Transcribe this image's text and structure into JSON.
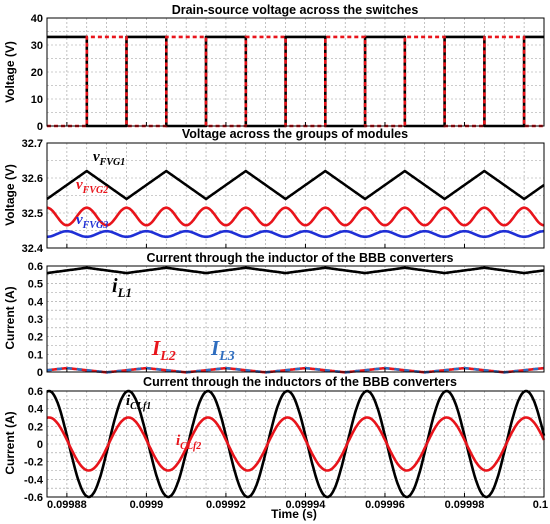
{
  "figure": {
    "xlabel": "Time (s)",
    "x_ticks": [
      "0.09988",
      "0.0999",
      "0.09992",
      "0.09994",
      "0.09996",
      "0.09998",
      "0.1"
    ]
  },
  "chart_data": [
    {
      "type": "line",
      "title": "Drain-source voltage across the switches",
      "ylabel": "Voltage (V)",
      "xlim": [
        0.099875,
        0.1
      ],
      "ylim": [
        0,
        40
      ],
      "y_ticks": [
        "0",
        "10",
        "20",
        "30",
        "40"
      ],
      "grid": true,
      "series": [
        {
          "color": "#000000",
          "style": "solid",
          "signal": "square",
          "low": 0,
          "high": 33,
          "period": 2e-05,
          "first_low_start": 0.099885,
          "duty": 0.5
        },
        {
          "color": "#e8141b",
          "style": "dashed",
          "signal": "square",
          "low": 0,
          "high": 33,
          "period": 2e-05,
          "first_low_start": 0.099875,
          "duty": 0.5
        }
      ],
      "annotations": []
    },
    {
      "type": "line",
      "title": "Voltage across the groups of modules",
      "ylabel": "Voltage (V)",
      "xlim": [
        0.099875,
        0.1
      ],
      "ylim": [
        32.4,
        32.7
      ],
      "y_ticks": [
        "32.4",
        "32.5",
        "32.6",
        "32.7"
      ],
      "grid": true,
      "series": [
        {
          "name": "v_FVG1",
          "color": "#000000",
          "signal": "triangle",
          "center": 32.58,
          "amp": 0.04,
          "period": 2e-05,
          "phase": 0.0
        },
        {
          "name": "v_FVG2",
          "color": "#e8141b",
          "signal": "wave",
          "center": 32.49,
          "amp": 0.025,
          "period": 1e-05,
          "phase": 0.0
        },
        {
          "name": "v_FVG3",
          "color": "#1f2fd6",
          "signal": "wave",
          "center": 32.44,
          "amp": 0.008,
          "period": 1e-05,
          "phase": 0.5
        }
      ],
      "annotations": [
        {
          "main": "v",
          "sub": "FVG1",
          "color": "#000000"
        },
        {
          "main": "v",
          "sub": "FVG2",
          "color": "#e8141b"
        },
        {
          "main": "v",
          "sub": "FVG3",
          "color": "#1f2fd6"
        }
      ]
    },
    {
      "type": "line",
      "title": "Current through the inductor of the BBB converters",
      "ylabel": "Current (A)",
      "xlim": [
        0.099875,
        0.1
      ],
      "ylim": [
        0,
        0.6
      ],
      "y_ticks": [
        "0",
        "0.1",
        "0.2",
        "0.3",
        "0.4",
        "0.5",
        "0.6"
      ],
      "grid": true,
      "series": [
        {
          "name": "i_L1",
          "color": "#000000",
          "signal": "triangle",
          "center": 0.575,
          "amp": 0.015,
          "period": 2e-05,
          "phase": 0.0
        },
        {
          "name": "I_L2",
          "color": "#e8141b",
          "signal": "triangle",
          "center": 0.01,
          "amp": 0.012,
          "period": 2e-05,
          "phase": 0.25
        },
        {
          "name": "I_L3",
          "color": "#2e6dbf",
          "style": "dashed",
          "signal": "triangle",
          "center": 0.01,
          "amp": 0.012,
          "period": 2e-05,
          "phase": 0.25
        }
      ],
      "annotations": [
        {
          "main": "i",
          "sub": "L1",
          "color": "#000000"
        },
        {
          "main": "I",
          "sub": "L2",
          "color": "#e8141b"
        },
        {
          "main": "I",
          "sub": "L3",
          "color": "#2e6dbf"
        }
      ]
    },
    {
      "type": "line",
      "title": "Current through the inductors of the BBB converters",
      "ylabel": "Current (A)",
      "xlim": [
        0.099875,
        0.1
      ],
      "ylim": [
        -0.6,
        0.6
      ],
      "y_ticks": [
        "-0.6",
        "-0.4",
        "-0.2",
        "0",
        "0.2",
        "0.4",
        "0.6"
      ],
      "grid": true,
      "series": [
        {
          "name": "i_CLf1",
          "color": "#000000",
          "signal": "sine",
          "amp": 0.6,
          "period": 2e-05,
          "peak_at": 0.0998955
        },
        {
          "name": "i_CLf2",
          "color": "#e8141b",
          "signal": "sine",
          "amp": 0.3,
          "period": 2e-05,
          "peak_at": 0.0998955
        }
      ],
      "annotations": [
        {
          "main": "i",
          "sub": "CLf1",
          "color": "#000000"
        },
        {
          "main": "i",
          "sub": "CLf2",
          "color": "#e8141b"
        }
      ]
    }
  ]
}
